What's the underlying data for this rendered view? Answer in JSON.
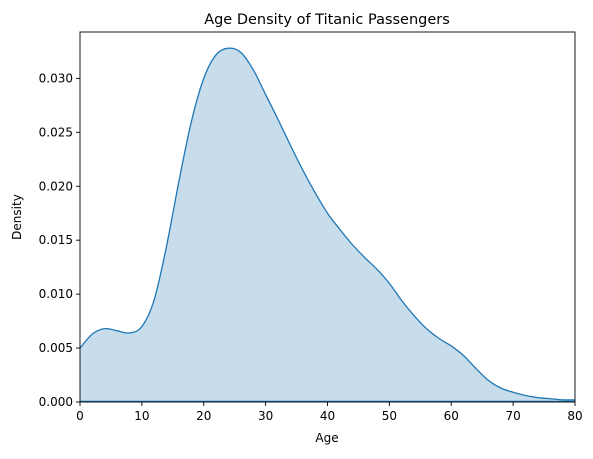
{
  "chart_data": {
    "type": "area",
    "title": "Age Density of Titanic Passengers",
    "xlabel": "Age",
    "ylabel": "Density",
    "xlim": [
      0,
      80
    ],
    "ylim": [
      0,
      0.0343
    ],
    "x_ticks": [
      "0",
      "10",
      "20",
      "30",
      "40",
      "50",
      "60",
      "70",
      "80"
    ],
    "y_ticks": [
      "0.000",
      "0.005",
      "0.010",
      "0.015",
      "0.020",
      "0.025",
      "0.030"
    ],
    "grid": false,
    "colors": {
      "line": "#1f77b4",
      "fill": "#1f77b4",
      "fill_opacity": 0.25
    },
    "series": [
      {
        "x": [
          0,
          2,
          4,
          6,
          8,
          10,
          12,
          14,
          16,
          18,
          20,
          22,
          24,
          26,
          28,
          30,
          32,
          34,
          36,
          38,
          40,
          42,
          44,
          46,
          48,
          50,
          52,
          54,
          56,
          58,
          60,
          62,
          64,
          66,
          68,
          70,
          72,
          74,
          76,
          78,
          80
        ],
        "y": [
          0.005,
          0.0063,
          0.0068,
          0.0066,
          0.0064,
          0.007,
          0.0095,
          0.0145,
          0.0205,
          0.026,
          0.03,
          0.0322,
          0.0328,
          0.0324,
          0.0308,
          0.0285,
          0.0262,
          0.0238,
          0.0215,
          0.0194,
          0.0175,
          0.016,
          0.0146,
          0.0134,
          0.0123,
          0.011,
          0.0094,
          0.008,
          0.0068,
          0.0059,
          0.0052,
          0.0043,
          0.0031,
          0.002,
          0.0013,
          0.0009,
          0.0006,
          0.0004,
          0.0003,
          0.0002,
          0.0002
        ]
      }
    ]
  }
}
